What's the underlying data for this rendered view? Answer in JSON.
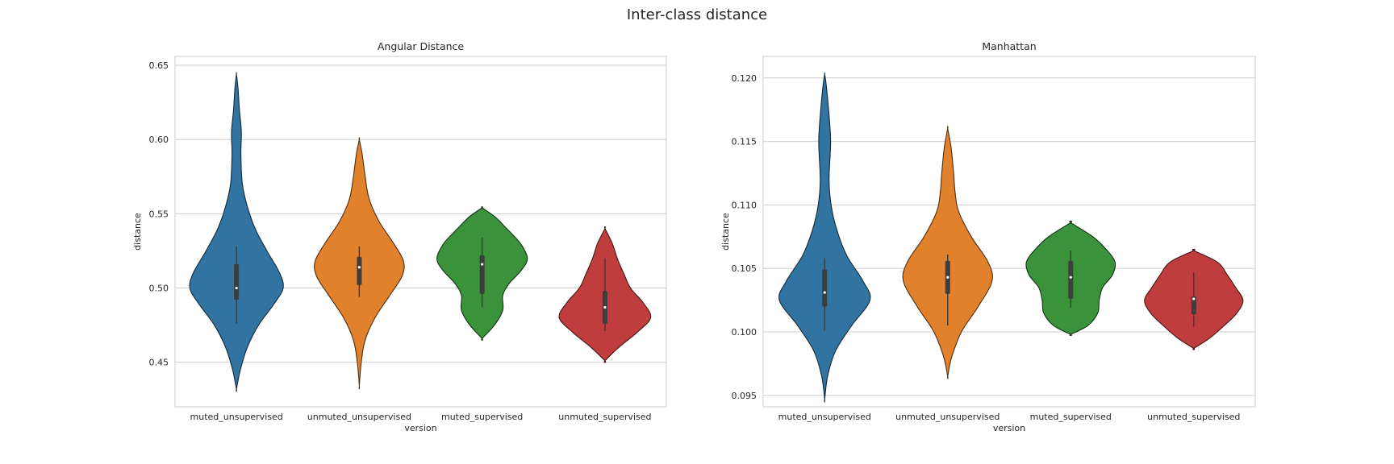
{
  "suptitle": "Inter-class distance",
  "chart_data": [
    {
      "type": "violin",
      "title": "Angular Distance",
      "xlabel": "version",
      "ylabel": "distance",
      "ylim": [
        0.42,
        0.656
      ],
      "yticks": [
        0.45,
        0.5,
        0.55,
        0.6,
        0.65
      ],
      "yticklabels": [
        "0.45",
        "0.50",
        "0.55",
        "0.60",
        "0.65"
      ],
      "grid": true,
      "categories": [
        "muted_unsupervised",
        "unmuted_unsupervised",
        "muted_supervised",
        "unmuted_supervised"
      ],
      "colors": [
        "#3274a1",
        "#e1812c",
        "#3a923a",
        "#c03d3e"
      ],
      "violins": [
        {
          "category": "muted_unsupervised",
          "median": 0.5,
          "q1": 0.492,
          "q3": 0.516,
          "whisker_low": 0.476,
          "whisker_high": 0.528,
          "profile": [
            [
              0.432,
              0.0
            ],
            [
              0.445,
              0.08
            ],
            [
              0.46,
              0.22
            ],
            [
              0.475,
              0.45
            ],
            [
              0.49,
              0.78
            ],
            [
              0.5,
              0.95
            ],
            [
              0.51,
              0.88
            ],
            [
              0.525,
              0.62
            ],
            [
              0.54,
              0.38
            ],
            [
              0.555,
              0.22
            ],
            [
              0.57,
              0.12
            ],
            [
              0.59,
              0.09
            ],
            [
              0.605,
              0.1
            ],
            [
              0.62,
              0.06
            ],
            [
              0.635,
              0.03
            ],
            [
              0.644,
              0.0
            ]
          ]
        },
        {
          "category": "unmuted_unsupervised",
          "median": 0.514,
          "q1": 0.502,
          "q3": 0.521,
          "whisker_low": 0.494,
          "whisker_high": 0.528,
          "profile": [
            [
              0.434,
              0.0
            ],
            [
              0.45,
              0.04
            ],
            [
              0.465,
              0.12
            ],
            [
              0.48,
              0.32
            ],
            [
              0.495,
              0.62
            ],
            [
              0.508,
              0.87
            ],
            [
              0.518,
              0.9
            ],
            [
              0.53,
              0.7
            ],
            [
              0.545,
              0.4
            ],
            [
              0.56,
              0.2
            ],
            [
              0.575,
              0.12
            ],
            [
              0.59,
              0.06
            ],
            [
              0.6,
              0.0
            ]
          ]
        },
        {
          "category": "muted_supervised",
          "median": 0.516,
          "q1": 0.496,
          "q3": 0.522,
          "whisker_low": 0.487,
          "whisker_high": 0.534,
          "profile": [
            [
              0.466,
              0.0
            ],
            [
              0.475,
              0.25
            ],
            [
              0.485,
              0.42
            ],
            [
              0.495,
              0.42
            ],
            [
              0.503,
              0.55
            ],
            [
              0.512,
              0.8
            ],
            [
              0.52,
              0.92
            ],
            [
              0.53,
              0.78
            ],
            [
              0.54,
              0.5
            ],
            [
              0.548,
              0.26
            ],
            [
              0.554,
              0.0
            ]
          ]
        },
        {
          "category": "unmuted_supervised",
          "median": 0.487,
          "q1": 0.476,
          "q3": 0.498,
          "whisker_low": 0.471,
          "whisker_high": 0.52,
          "profile": [
            [
              0.451,
              0.0
            ],
            [
              0.46,
              0.28
            ],
            [
              0.47,
              0.65
            ],
            [
              0.48,
              0.93
            ],
            [
              0.49,
              0.78
            ],
            [
              0.5,
              0.52
            ],
            [
              0.51,
              0.38
            ],
            [
              0.52,
              0.25
            ],
            [
              0.53,
              0.15
            ],
            [
              0.54,
              0.0
            ]
          ]
        }
      ]
    },
    {
      "type": "violin",
      "title": "Manhattan",
      "xlabel": "version",
      "ylabel": "distance",
      "ylim": [
        0.0941,
        0.1217
      ],
      "yticks": [
        0.095,
        0.1,
        0.105,
        0.11,
        0.115,
        0.12
      ],
      "yticklabels": [
        "0.095",
        "0.100",
        "0.105",
        "0.110",
        "0.115",
        "0.120"
      ],
      "grid": true,
      "categories": [
        "muted_unsupervised",
        "unmuted_unsupervised",
        "muted_supervised",
        "unmuted_supervised"
      ],
      "colors": [
        "#3274a1",
        "#e1812c",
        "#3a923a",
        "#c03d3e"
      ],
      "violins": [
        {
          "category": "muted_unsupervised",
          "median": 0.1031,
          "q1": 0.102,
          "q3": 0.1049,
          "whisker_low": 0.1001,
          "whisker_high": 0.1058,
          "profile": [
            [
              0.0947,
              0.0
            ],
            [
              0.0965,
              0.06
            ],
            [
              0.0985,
              0.22
            ],
            [
              0.1005,
              0.55
            ],
            [
              0.1025,
              0.92
            ],
            [
              0.104,
              0.78
            ],
            [
              0.106,
              0.45
            ],
            [
              0.108,
              0.25
            ],
            [
              0.11,
              0.13
            ],
            [
              0.112,
              0.09
            ],
            [
              0.115,
              0.12
            ],
            [
              0.1175,
              0.08
            ],
            [
              0.1195,
              0.03
            ],
            [
              0.1203,
              0.0
            ]
          ]
        },
        {
          "category": "unmuted_unsupervised",
          "median": 0.1043,
          "q1": 0.103,
          "q3": 0.1056,
          "whisker_low": 0.1005,
          "whisker_high": 0.1061,
          "profile": [
            [
              0.0965,
              0.0
            ],
            [
              0.098,
              0.08
            ],
            [
              0.1,
              0.28
            ],
            [
              0.102,
              0.62
            ],
            [
              0.104,
              0.9
            ],
            [
              0.1055,
              0.82
            ],
            [
              0.1075,
              0.48
            ],
            [
              0.1095,
              0.22
            ],
            [
              0.111,
              0.15
            ],
            [
              0.1125,
              0.12
            ],
            [
              0.1145,
              0.07
            ],
            [
              0.116,
              0.0
            ]
          ]
        },
        {
          "category": "muted_supervised",
          "median": 0.1043,
          "q1": 0.1026,
          "q3": 0.1056,
          "whisker_low": 0.1019,
          "whisker_high": 0.1064,
          "profile": [
            [
              0.0998,
              0.0
            ],
            [
              0.1005,
              0.35
            ],
            [
              0.1015,
              0.55
            ],
            [
              0.1025,
              0.58
            ],
            [
              0.1035,
              0.65
            ],
            [
              0.1045,
              0.85
            ],
            [
              0.1055,
              0.9
            ],
            [
              0.1065,
              0.72
            ],
            [
              0.1075,
              0.45
            ],
            [
              0.1086,
              0.0
            ]
          ]
        },
        {
          "category": "unmuted_supervised",
          "median": 0.1026,
          "q1": 0.1014,
          "q3": 0.1028,
          "whisker_low": 0.1004,
          "whisker_high": 0.1047,
          "profile": [
            [
              0.0987,
              0.0
            ],
            [
              0.0995,
              0.32
            ],
            [
              0.1005,
              0.62
            ],
            [
              0.1015,
              0.88
            ],
            [
              0.1025,
              1.0
            ],
            [
              0.1035,
              0.85
            ],
            [
              0.1045,
              0.68
            ],
            [
              0.1055,
              0.48
            ],
            [
              0.1064,
              0.0
            ]
          ]
        }
      ]
    }
  ]
}
